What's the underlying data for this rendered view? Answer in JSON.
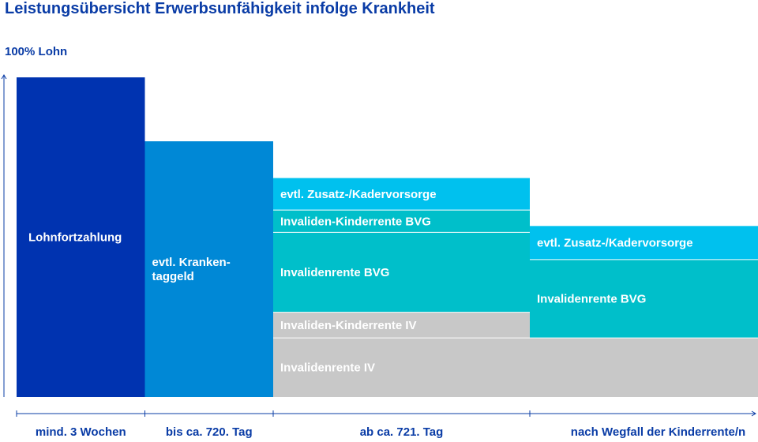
{
  "chart_data": {
    "type": "bar",
    "stacked": true,
    "title": "Leistungsübersicht Erwerbsunfähigkeit infolge Krankheit",
    "ylabel": "100% Lohn",
    "xlabel": "",
    "ylim": [
      0,
      100
    ],
    "categories": [
      "mind. 3 Wochen",
      "bis ca. 720. Tag",
      "ab ca. 721. Tag",
      "nach Wegfall der Kinderrente/n"
    ],
    "category_spans": [
      1,
      1,
      2,
      2
    ],
    "columns": [
      {
        "category_index": 0,
        "segments": [
          {
            "label": "Lohnfortzahlung",
            "value": 100,
            "color": "#0033b0"
          }
        ]
      },
      {
        "category_index": 1,
        "segments": [
          {
            "label": "evtl. Kranken-|taggeld",
            "value": 80,
            "color": "#0088d6"
          }
        ]
      },
      {
        "category_index": 2,
        "segments": [
          {
            "label": "Invalidenrente IV",
            "value": 18.5,
            "color": "#c8c8c8"
          },
          {
            "label": "Invaliden-Kinderrente IV",
            "value": 8,
            "color": "#c8c8c8"
          },
          {
            "label": "Invalidenrente BVG",
            "value": 25,
            "color": "#00bfca"
          },
          {
            "label": "Invaliden-Kinderrente BVG",
            "value": 7,
            "color": "#00bfca"
          },
          {
            "label": "evtl. Zusatz-/Kadervorsorge",
            "value": 10,
            "color": "#00c1ee"
          }
        ]
      },
      {
        "category_index": 3,
        "segments": [
          {
            "label": "",
            "value": 18.5,
            "color": "#c8c8c8"
          },
          {
            "label": "Invalidenrente BVG",
            "value": 24.5,
            "color": "#00bfca"
          },
          {
            "label": "evtl. Zusatz-/Kadervorsorge",
            "value": 10.5,
            "color": "#00c1ee"
          }
        ]
      }
    ]
  }
}
